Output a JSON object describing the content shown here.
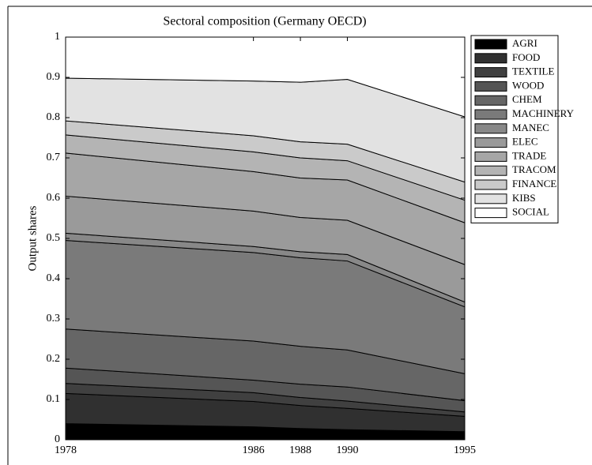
{
  "chart_data": {
    "type": "stacked-area",
    "title": "Sectoral composition (Germany OECD)",
    "y_label": "Output shares",
    "x": [
      1978,
      1986,
      1988,
      1990,
      1995
    ],
    "xlim": [
      1978,
      1995
    ],
    "xticks": [
      1978,
      1986,
      1988,
      1990,
      1995
    ],
    "ylim": [
      0,
      1
    ],
    "yticks": [
      0,
      0.1,
      0.2,
      0.3,
      0.4,
      0.5,
      0.6,
      0.7,
      0.8,
      0.9,
      1
    ],
    "legend": "outside-right",
    "series": [
      {
        "name": "AGRI",
        "color": "#000000",
        "values": [
          0.04,
          0.032,
          0.028,
          0.025,
          0.02
        ]
      },
      {
        "name": "FOOD",
        "color": "#303030",
        "values": [
          0.075,
          0.063,
          0.057,
          0.053,
          0.038
        ]
      },
      {
        "name": "TEXTILE",
        "color": "#404040",
        "values": [
          0.025,
          0.022,
          0.02,
          0.018,
          0.011
        ]
      },
      {
        "name": "WOOD",
        "color": "#555555",
        "values": [
          0.038,
          0.031,
          0.033,
          0.035,
          0.028
        ]
      },
      {
        "name": "CHEM",
        "color": "#666666",
        "values": [
          0.097,
          0.097,
          0.094,
          0.092,
          0.067
        ]
      },
      {
        "name": "MACHINERY",
        "color": "#7a7a7a",
        "values": [
          0.22,
          0.22,
          0.22,
          0.221,
          0.166
        ]
      },
      {
        "name": "MANEC",
        "color": "#888888",
        "values": [
          0.018,
          0.015,
          0.015,
          0.016,
          0.012
        ]
      },
      {
        "name": "ELEC",
        "color": "#9a9a9a",
        "values": [
          0.092,
          0.088,
          0.085,
          0.085,
          0.093
        ]
      },
      {
        "name": "TRADE",
        "color": "#a6a6a6",
        "values": [
          0.107,
          0.098,
          0.098,
          0.1,
          0.104
        ]
      },
      {
        "name": "TRACOM",
        "color": "#b4b4b4",
        "values": [
          0.045,
          0.049,
          0.05,
          0.048,
          0.056
        ]
      },
      {
        "name": "FINANCE",
        "color": "#cacaca",
        "values": [
          0.035,
          0.04,
          0.04,
          0.041,
          0.045
        ]
      },
      {
        "name": "KIBS",
        "color": "#e2e2e2",
        "values": [
          0.106,
          0.136,
          0.148,
          0.161,
          0.162
        ]
      },
      {
        "name": "SOCIAL",
        "color": "#ffffff",
        "values": [
          0.102,
          0.109,
          0.112,
          0.105,
          0.198
        ]
      }
    ]
  }
}
